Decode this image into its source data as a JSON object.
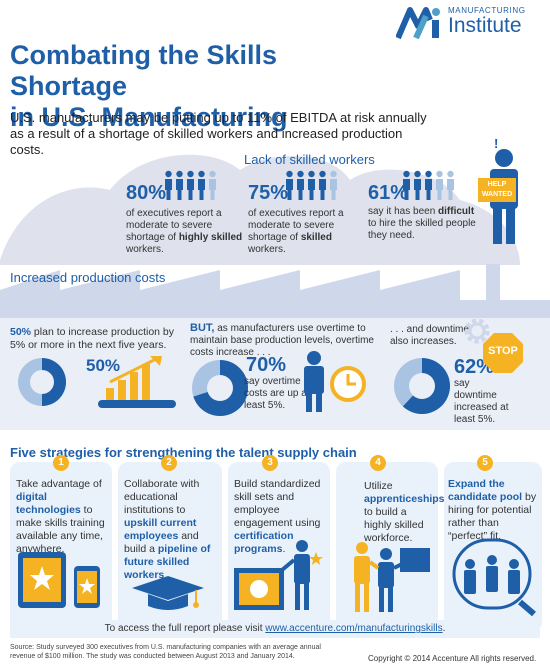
{
  "header": {
    "logo_line1": "MANUFACTURING",
    "logo_line2": "Institute",
    "title_line1": "Combating the Skills Shortage",
    "title_line2": "in U.S. Manufacturing",
    "intro": "U.S. manufacturers may be putting up to 11% of EBITDA at risk annually as a result of a shortage of skilled workers and increased production costs."
  },
  "skilled_workers": {
    "heading": "Lack of skilled workers",
    "stats": [
      {
        "pct": "80%",
        "text_a": "of executives report a moderate to severe shortage of ",
        "highlight": "highly skilled",
        "text_b": " workers."
      },
      {
        "pct": "75%",
        "text_a": "of executives report a moderate to severe shortage of ",
        "highlight": "skilled",
        "text_b": " workers."
      },
      {
        "pct": "61%",
        "text_a": "say it has been ",
        "highlight": "difficult",
        "text_b": " to hire the skilled people they need."
      }
    ],
    "sign_line1": "HELP",
    "sign_line2": "WANTED",
    "exclaim": "!"
  },
  "production": {
    "heading": "Increased production costs",
    "plan_pct": "50%",
    "plan_text": " plan to increase production by 5% or more in the next five years.",
    "donut_label": "50%",
    "but": "BUT,",
    "but_text": " as manufacturers use overtime to maintain base production levels, overtime costs increase . . .",
    "overtime_pct": "70%",
    "overtime_text": "say overtime costs are up at least 5%.",
    "downtime_intro": ". . . and downtime also increases.",
    "downtime_pct": "62%",
    "downtime_text": "say downtime increased at least 5%.",
    "stop": "STOP",
    "overtime_value": 0.7,
    "downtime_value": 0.62,
    "plan_value": 0.5
  },
  "strategies": {
    "heading": "Five strategies for strengthening the talent supply chain",
    "items": [
      {
        "num": "1",
        "a": "Take advantage of ",
        "b": "digital technologies",
        "c": " to make skills training available any time, anywhere."
      },
      {
        "num": "2",
        "a": "Collaborate with educational institutions to ",
        "b": "upskill current employees",
        "c": " and build a ",
        "d": "pipeline of future skilled workers",
        "e": "."
      },
      {
        "num": "3",
        "a": "Build standardized skill sets and employee engagement using ",
        "b": "certification programs",
        "c": "."
      },
      {
        "num": "4",
        "a": "Utilize ",
        "b": "apprenticeships",
        "c": " to build a highly skilled workforce."
      },
      {
        "num": "5",
        "a": "",
        "b": "Expand the candidate pool",
        "c": " by hiring for potential rather than “perfect” fit."
      }
    ]
  },
  "footer": {
    "access_text": "To access the full report please visit ",
    "access_link": "www.accenture.com/manufacturingskills",
    "access_end": ".",
    "source": "Source: Study surveyed 300 executives from U.S. manufacturing companies with an average annual revenue of $100 million. The study was conducted between August 2013 and January 2014.",
    "copyright": "Copyright © 2014 Accenture  All rights reserved."
  },
  "colors": {
    "brand_blue": "#1f5fa8",
    "light_blue": "#a9c3e3",
    "pale_blue": "#e9f2fb",
    "cloud": "#dfe2ec",
    "factory": "#cfd7ea",
    "yellow": "#f5b324"
  }
}
